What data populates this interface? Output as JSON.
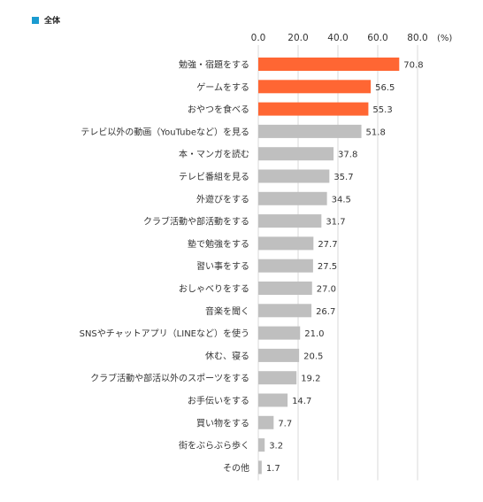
{
  "legend": {
    "label": "全体",
    "color": "#1a9bd0"
  },
  "chart_data": {
    "type": "bar",
    "orientation": "horizontal",
    "title": "",
    "xlabel": "",
    "ylabel": "",
    "xlim": [
      0,
      80
    ],
    "ticks": [
      0,
      20,
      40,
      60,
      80
    ],
    "tick_labels": [
      "0.0",
      "20.0",
      "40.0",
      "60.0",
      "80.0"
    ],
    "unit": "(%)",
    "grid": true,
    "legend_position": "top-left",
    "series": [
      {
        "name": "全体"
      }
    ],
    "categories": [
      "勉強・宿題をする",
      "ゲームをする",
      "おやつを食べる",
      "テレビ以外の動画（YouTubeなど）を見る",
      "本・マンガを読む",
      "テレビ番組を見る",
      "外遊びをする",
      "クラブ活動や部活動をする",
      "塾で勉強をする",
      "習い事をする",
      "おしゃべりをする",
      "音楽を聞く",
      "SNSやチャットアプリ（LINEなど）を使う",
      "休む、寝る",
      "クラブ活動や部活以外のスポーツをする",
      "お手伝いをする",
      "買い物をする",
      "街をぶらぶら歩く",
      "その他"
    ],
    "values": [
      70.8,
      56.5,
      55.3,
      51.8,
      37.8,
      35.7,
      34.5,
      31.7,
      27.7,
      27.5,
      27.0,
      26.7,
      21.0,
      20.5,
      19.2,
      14.7,
      7.7,
      3.2,
      1.7
    ],
    "value_labels": [
      "70.8",
      "56.5",
      "55.3",
      "51.8",
      "37.8",
      "35.7",
      "34.5",
      "31.7",
      "27.7",
      "27.5",
      "27.0",
      "26.7",
      "21.0",
      "20.5",
      "19.2",
      "14.7",
      "7.7",
      "3.2",
      "1.7"
    ],
    "highlight_count": 3,
    "colors": {
      "highlight": "#ff6633",
      "normal": "#bfbfbf",
      "grid": "#d9d9d9"
    }
  }
}
